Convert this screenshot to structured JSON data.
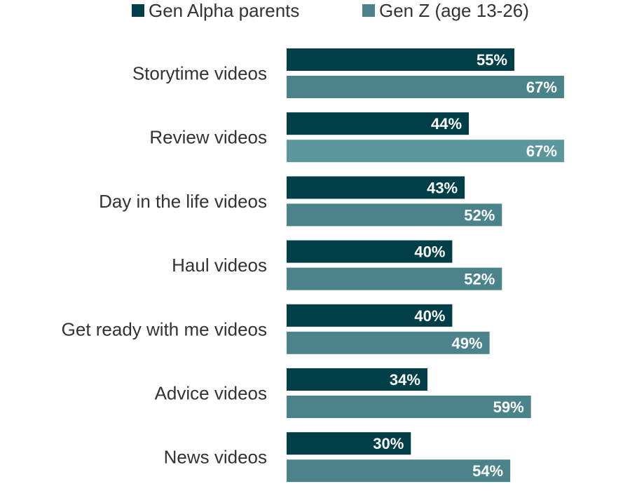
{
  "chart_data": {
    "type": "bar",
    "orientation": "horizontal",
    "categories": [
      "Storytime videos",
      "Review videos",
      "Day in the life videos",
      "Haul videos",
      "Get ready with me videos",
      "Advice videos",
      "News videos"
    ],
    "series": [
      {
        "name": "Gen Alpha parents",
        "color": "#003f47",
        "values": [
          55,
          44,
          43,
          40,
          40,
          34,
          30
        ],
        "labels": [
          "55%",
          "44%",
          "43%",
          "40%",
          "40%",
          "34%",
          "30%"
        ]
      },
      {
        "name": "Gen Z (age 13-26)",
        "color": "#4a848a",
        "values": [
          67,
          67,
          52,
          52,
          49,
          59,
          54
        ],
        "labels": [
          "67%",
          "67%",
          "52%",
          "52%",
          "49%",
          "59%",
          "54%"
        ]
      }
    ],
    "value_unit": "%",
    "xlim": [
      0,
      100
    ],
    "grid": false,
    "legend_position": "top"
  }
}
